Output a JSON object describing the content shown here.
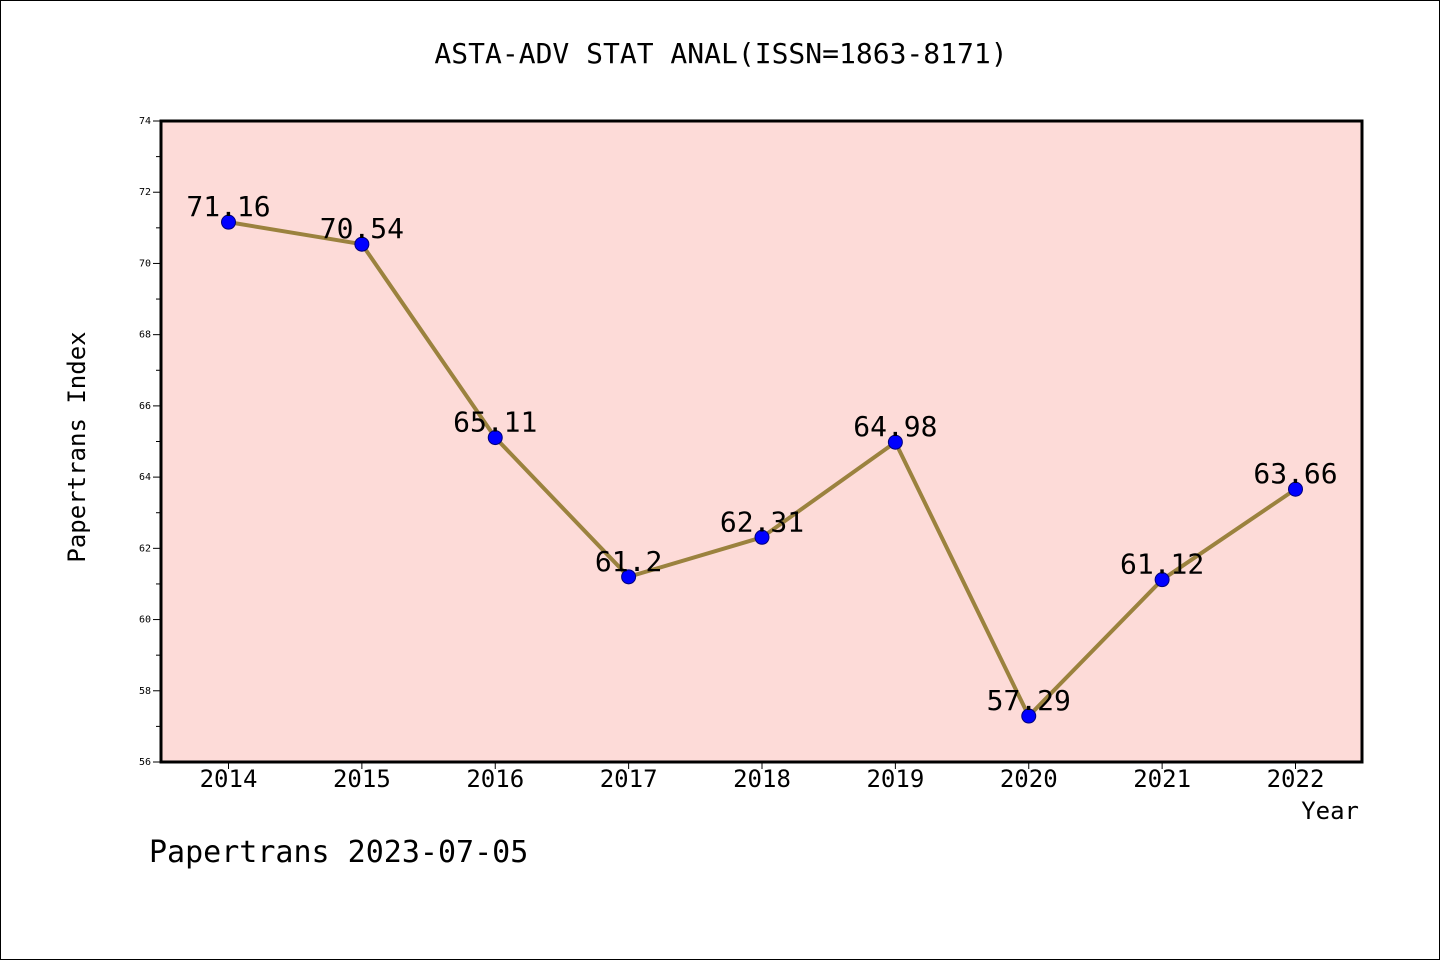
{
  "chart_data": {
    "type": "line",
    "title": "ASTA-ADV STAT ANAL(ISSN=1863-8171)",
    "xlabel": "Year",
    "ylabel": "Papertrans Index",
    "categories": [
      "2014",
      "2015",
      "2016",
      "2017",
      "2018",
      "2019",
      "2020",
      "2021",
      "2022"
    ],
    "series": [
      {
        "values": [
          71.16,
          70.54,
          65.11,
          61.2,
          62.31,
          64.98,
          57.29,
          61.12,
          63.66
        ]
      }
    ],
    "data_labels": [
      "71.16",
      "70.54",
      "65.11",
      "61.2",
      "62.31",
      "64.98",
      "57.29",
      "61.12",
      "63.66"
    ],
    "ylim": [
      56,
      74
    ],
    "yticks": [
      56,
      58,
      60,
      62,
      64,
      66,
      68,
      70,
      72,
      74
    ],
    "grid": false,
    "legend": "none",
    "colors": {
      "plot_background": "#fddbd8",
      "line": "#9b823e",
      "marker": "#0000ff"
    }
  },
  "footer": {
    "text": "Papertrans 2023-07-05"
  }
}
